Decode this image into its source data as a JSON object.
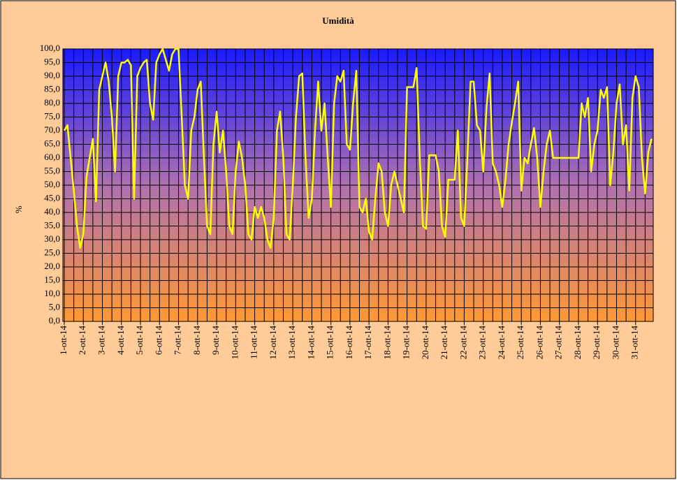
{
  "chart_data": {
    "type": "line",
    "title": "Umidità",
    "y_label": "%",
    "x": [
      "1-ott-14",
      null,
      null,
      null,
      null,
      null,
      "2-ott-14",
      null,
      null,
      null,
      null,
      null,
      "3-ott-14",
      null,
      null,
      null,
      null,
      null,
      "4-ott-14",
      null,
      null,
      null,
      null,
      null,
      "5-ott-14",
      null,
      null,
      null,
      null,
      null,
      "6-ott-14",
      null,
      null,
      null,
      null,
      null,
      "7-ott-14",
      null,
      null,
      null,
      null,
      null,
      "8-ott-14",
      null,
      null,
      null,
      null,
      null,
      "9-ott-14",
      null,
      null,
      null,
      null,
      null,
      "10-ott-14",
      null,
      null,
      null,
      null,
      null,
      "11-ott-14",
      null,
      null,
      null,
      null,
      null,
      "12-ott-14",
      null,
      null,
      null,
      null,
      null,
      "13-ott-14",
      null,
      null,
      null,
      null,
      null,
      "14-ott-14",
      null,
      null,
      null,
      null,
      null,
      "15-ott-14",
      null,
      null,
      null,
      null,
      null,
      "16-ott-14",
      null,
      null,
      null,
      null,
      null,
      "17-ott-14",
      null,
      null,
      null,
      null,
      null,
      "18-ott-14",
      null,
      null,
      null,
      null,
      null,
      "19-ott-14",
      null,
      null,
      null,
      null,
      null,
      "20-ott-14",
      null,
      null,
      null,
      null,
      null,
      "21-ott-14",
      null,
      null,
      null,
      null,
      null,
      "22-ott-14",
      null,
      null,
      null,
      null,
      null,
      "23-ott-14",
      null,
      null,
      null,
      null,
      null,
      "24-ott-14",
      null,
      null,
      null,
      null,
      null,
      "25-ott-14",
      null,
      null,
      null,
      null,
      null,
      "26-ott-14",
      null,
      null,
      null,
      null,
      null,
      "27-ott-14",
      null,
      null,
      null,
      null,
      null,
      "28-ott-14",
      null,
      null,
      null,
      null,
      null,
      "29-ott-14",
      null,
      null,
      null,
      null,
      null,
      "30-ott-14",
      null,
      null,
      null,
      null,
      null,
      "31-ott-14",
      null,
      null,
      null,
      null,
      null
    ],
    "series": [
      {
        "color": "#ffff00",
        "values": [
          70,
          72,
          60,
          48,
          35,
          27,
          32,
          53,
          60,
          67,
          44,
          85,
          90,
          95,
          88,
          75,
          55,
          90,
          95,
          95,
          96,
          94,
          45,
          90,
          93,
          95,
          96,
          80,
          74,
          95,
          98,
          100,
          96,
          92,
          98,
          100,
          100,
          75,
          50,
          45,
          70,
          75,
          85,
          88,
          60,
          35,
          32,
          65,
          77,
          62,
          70,
          55,
          35,
          32,
          55,
          66,
          60,
          50,
          32,
          30,
          42,
          38,
          42,
          38,
          30,
          27,
          38,
          70,
          77,
          60,
          32,
          30,
          50,
          75,
          90,
          91,
          60,
          38,
          45,
          70,
          88,
          70,
          80,
          60,
          42,
          80,
          90,
          88,
          92,
          65,
          63,
          80,
          92,
          42,
          40,
          45,
          33,
          30,
          45,
          58,
          55,
          40,
          35,
          50,
          55,
          50,
          45,
          40,
          86,
          86,
          86,
          93,
          60,
          35,
          34,
          61,
          61,
          61,
          55,
          35,
          31,
          52,
          52,
          52,
          70,
          38,
          35,
          60,
          88,
          88,
          72,
          70,
          55,
          78,
          91,
          58,
          55,
          50,
          42,
          52,
          65,
          73,
          80,
          88,
          48,
          60,
          58,
          65,
          71,
          60,
          42,
          55,
          65,
          70,
          60,
          60,
          60,
          60,
          60,
          60,
          60,
          60,
          60,
          80,
          75,
          82,
          55,
          65,
          70,
          85,
          82,
          86,
          50,
          62,
          80,
          87,
          65,
          72,
          48,
          82,
          90,
          86,
          60,
          47,
          62,
          67
        ]
      }
    ],
    "ylim": [
      0,
      100
    ],
    "yticks": [
      {
        "value": 0,
        "label": "0,0"
      },
      {
        "value": 5,
        "label": "5,0"
      },
      {
        "value": 10,
        "label": "10,0"
      },
      {
        "value": 15,
        "label": "15,0"
      },
      {
        "value": 20,
        "label": "20,0"
      },
      {
        "value": 25,
        "label": "25,0"
      },
      {
        "value": 30,
        "label": "30,0"
      },
      {
        "value": 35,
        "label": "35,0"
      },
      {
        "value": 40,
        "label": "40,0"
      },
      {
        "value": 45,
        "label": "45,0"
      },
      {
        "value": 50,
        "label": "50,0"
      },
      {
        "value": 55,
        "label": "55,0"
      },
      {
        "value": 60,
        "label": "60,0"
      },
      {
        "value": 65,
        "label": "65,0"
      },
      {
        "value": 70,
        "label": "70,0"
      },
      {
        "value": 75,
        "label": "75,0"
      },
      {
        "value": 80,
        "label": "80,0"
      },
      {
        "value": 85,
        "label": "85,0"
      },
      {
        "value": 90,
        "label": "90,0"
      },
      {
        "value": 95,
        "label": "95,0"
      },
      {
        "value": 100,
        "label": "100,0"
      }
    ],
    "grid": true
  }
}
